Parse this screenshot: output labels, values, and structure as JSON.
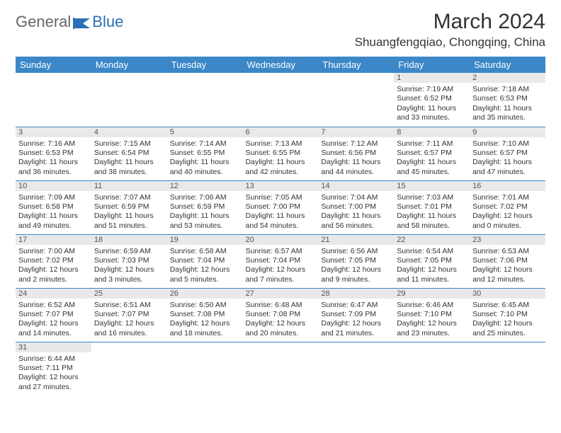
{
  "logo": {
    "text1": "General",
    "text2": "Blue"
  },
  "title": "March 2024",
  "location": "Shuangfengqiao, Chongqing, China",
  "headers": [
    "Sunday",
    "Monday",
    "Tuesday",
    "Wednesday",
    "Thursday",
    "Friday",
    "Saturday"
  ],
  "header_bg": "#3b87c8",
  "daynum_bg": "#e9e9e9",
  "weeks": [
    [
      null,
      null,
      null,
      null,
      null,
      {
        "n": "1",
        "sr": "Sunrise: 7:19 AM",
        "ss": "Sunset: 6:52 PM",
        "d1": "Daylight: 11 hours",
        "d2": "and 33 minutes."
      },
      {
        "n": "2",
        "sr": "Sunrise: 7:18 AM",
        "ss": "Sunset: 6:53 PM",
        "d1": "Daylight: 11 hours",
        "d2": "and 35 minutes."
      }
    ],
    [
      {
        "n": "3",
        "sr": "Sunrise: 7:16 AM",
        "ss": "Sunset: 6:53 PM",
        "d1": "Daylight: 11 hours",
        "d2": "and 36 minutes."
      },
      {
        "n": "4",
        "sr": "Sunrise: 7:15 AM",
        "ss": "Sunset: 6:54 PM",
        "d1": "Daylight: 11 hours",
        "d2": "and 38 minutes."
      },
      {
        "n": "5",
        "sr": "Sunrise: 7:14 AM",
        "ss": "Sunset: 6:55 PM",
        "d1": "Daylight: 11 hours",
        "d2": "and 40 minutes."
      },
      {
        "n": "6",
        "sr": "Sunrise: 7:13 AM",
        "ss": "Sunset: 6:55 PM",
        "d1": "Daylight: 11 hours",
        "d2": "and 42 minutes."
      },
      {
        "n": "7",
        "sr": "Sunrise: 7:12 AM",
        "ss": "Sunset: 6:56 PM",
        "d1": "Daylight: 11 hours",
        "d2": "and 44 minutes."
      },
      {
        "n": "8",
        "sr": "Sunrise: 7:11 AM",
        "ss": "Sunset: 6:57 PM",
        "d1": "Daylight: 11 hours",
        "d2": "and 45 minutes."
      },
      {
        "n": "9",
        "sr": "Sunrise: 7:10 AM",
        "ss": "Sunset: 6:57 PM",
        "d1": "Daylight: 11 hours",
        "d2": "and 47 minutes."
      }
    ],
    [
      {
        "n": "10",
        "sr": "Sunrise: 7:09 AM",
        "ss": "Sunset: 6:58 PM",
        "d1": "Daylight: 11 hours",
        "d2": "and 49 minutes."
      },
      {
        "n": "11",
        "sr": "Sunrise: 7:07 AM",
        "ss": "Sunset: 6:59 PM",
        "d1": "Daylight: 11 hours",
        "d2": "and 51 minutes."
      },
      {
        "n": "12",
        "sr": "Sunrise: 7:06 AM",
        "ss": "Sunset: 6:59 PM",
        "d1": "Daylight: 11 hours",
        "d2": "and 53 minutes."
      },
      {
        "n": "13",
        "sr": "Sunrise: 7:05 AM",
        "ss": "Sunset: 7:00 PM",
        "d1": "Daylight: 11 hours",
        "d2": "and 54 minutes."
      },
      {
        "n": "14",
        "sr": "Sunrise: 7:04 AM",
        "ss": "Sunset: 7:00 PM",
        "d1": "Daylight: 11 hours",
        "d2": "and 56 minutes."
      },
      {
        "n": "15",
        "sr": "Sunrise: 7:03 AM",
        "ss": "Sunset: 7:01 PM",
        "d1": "Daylight: 11 hours",
        "d2": "and 58 minutes."
      },
      {
        "n": "16",
        "sr": "Sunrise: 7:01 AM",
        "ss": "Sunset: 7:02 PM",
        "d1": "Daylight: 12 hours",
        "d2": "and 0 minutes."
      }
    ],
    [
      {
        "n": "17",
        "sr": "Sunrise: 7:00 AM",
        "ss": "Sunset: 7:02 PM",
        "d1": "Daylight: 12 hours",
        "d2": "and 2 minutes."
      },
      {
        "n": "18",
        "sr": "Sunrise: 6:59 AM",
        "ss": "Sunset: 7:03 PM",
        "d1": "Daylight: 12 hours",
        "d2": "and 3 minutes."
      },
      {
        "n": "19",
        "sr": "Sunrise: 6:58 AM",
        "ss": "Sunset: 7:04 PM",
        "d1": "Daylight: 12 hours",
        "d2": "and 5 minutes."
      },
      {
        "n": "20",
        "sr": "Sunrise: 6:57 AM",
        "ss": "Sunset: 7:04 PM",
        "d1": "Daylight: 12 hours",
        "d2": "and 7 minutes."
      },
      {
        "n": "21",
        "sr": "Sunrise: 6:56 AM",
        "ss": "Sunset: 7:05 PM",
        "d1": "Daylight: 12 hours",
        "d2": "and 9 minutes."
      },
      {
        "n": "22",
        "sr": "Sunrise: 6:54 AM",
        "ss": "Sunset: 7:05 PM",
        "d1": "Daylight: 12 hours",
        "d2": "and 11 minutes."
      },
      {
        "n": "23",
        "sr": "Sunrise: 6:53 AM",
        "ss": "Sunset: 7:06 PM",
        "d1": "Daylight: 12 hours",
        "d2": "and 12 minutes."
      }
    ],
    [
      {
        "n": "24",
        "sr": "Sunrise: 6:52 AM",
        "ss": "Sunset: 7:07 PM",
        "d1": "Daylight: 12 hours",
        "d2": "and 14 minutes."
      },
      {
        "n": "25",
        "sr": "Sunrise: 6:51 AM",
        "ss": "Sunset: 7:07 PM",
        "d1": "Daylight: 12 hours",
        "d2": "and 16 minutes."
      },
      {
        "n": "26",
        "sr": "Sunrise: 6:50 AM",
        "ss": "Sunset: 7:08 PM",
        "d1": "Daylight: 12 hours",
        "d2": "and 18 minutes."
      },
      {
        "n": "27",
        "sr": "Sunrise: 6:48 AM",
        "ss": "Sunset: 7:08 PM",
        "d1": "Daylight: 12 hours",
        "d2": "and 20 minutes."
      },
      {
        "n": "28",
        "sr": "Sunrise: 6:47 AM",
        "ss": "Sunset: 7:09 PM",
        "d1": "Daylight: 12 hours",
        "d2": "and 21 minutes."
      },
      {
        "n": "29",
        "sr": "Sunrise: 6:46 AM",
        "ss": "Sunset: 7:10 PM",
        "d1": "Daylight: 12 hours",
        "d2": "and 23 minutes."
      },
      {
        "n": "30",
        "sr": "Sunrise: 6:45 AM",
        "ss": "Sunset: 7:10 PM",
        "d1": "Daylight: 12 hours",
        "d2": "and 25 minutes."
      }
    ],
    [
      {
        "n": "31",
        "sr": "Sunrise: 6:44 AM",
        "ss": "Sunset: 7:11 PM",
        "d1": "Daylight: 12 hours",
        "d2": "and 27 minutes."
      },
      null,
      null,
      null,
      null,
      null,
      null
    ]
  ]
}
